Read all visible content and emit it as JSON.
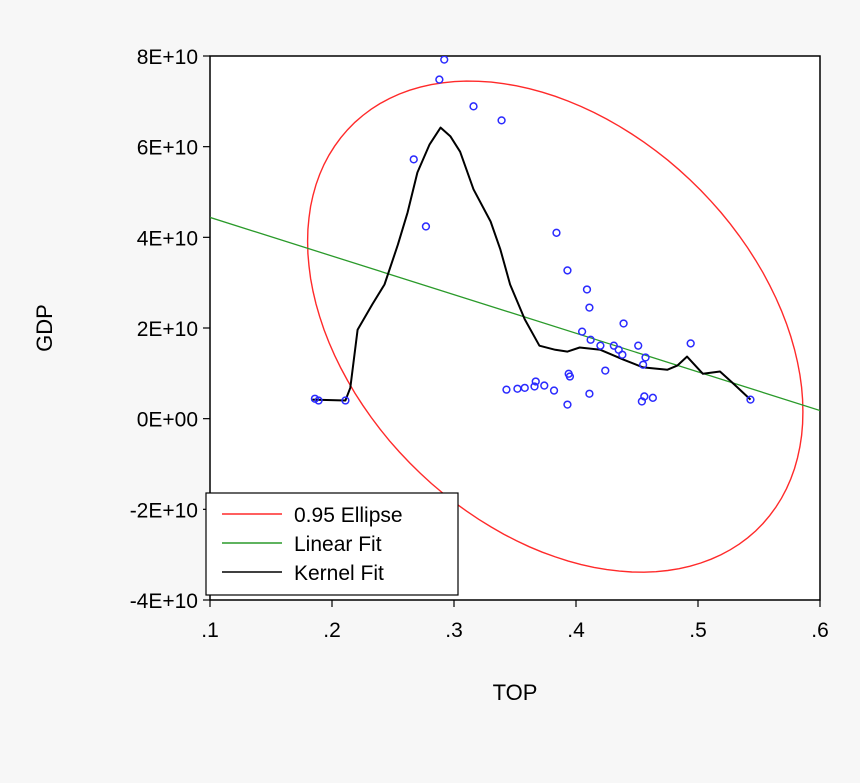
{
  "chart_data": {
    "type": "scatter",
    "title": "",
    "xlabel": "TOP",
    "ylabel": "GDP",
    "xlim": [
      0.1,
      0.6
    ],
    "ylim": [
      -40000000000.0,
      80000000000.0
    ],
    "x_ticks": [
      0.1,
      0.2,
      0.3,
      0.4,
      0.5,
      0.6
    ],
    "x_tick_labels": [
      ".1",
      ".2",
      ".3",
      ".4",
      ".5",
      ".6"
    ],
    "y_ticks": [
      -40000000000.0,
      -20000000000.0,
      0,
      20000000000.0,
      40000000000.0,
      60000000000.0,
      80000000000.0
    ],
    "y_tick_labels": [
      "-4E+10",
      "-2E+10",
      "0E+00",
      "2E+10",
      "4E+10",
      "6E+10",
      "8E+10"
    ],
    "grid": false,
    "legend_position": "bottom-left",
    "colors": {
      "points": "#2a2aff",
      "ellipse": "#ff2a2a",
      "linear": "#2a9a2a",
      "kernel": "#000000"
    },
    "points": {
      "name": "GDP vs TOP",
      "x": [
        0.292,
        0.288,
        0.316,
        0.339,
        0.267,
        0.277,
        0.384,
        0.393,
        0.409,
        0.411,
        0.439,
        0.405,
        0.412,
        0.42,
        0.431,
        0.435,
        0.438,
        0.451,
        0.457,
        0.455,
        0.494,
        0.424,
        0.394,
        0.395,
        0.343,
        0.352,
        0.358,
        0.367,
        0.366,
        0.374,
        0.382,
        0.411,
        0.393,
        0.456,
        0.454,
        0.463,
        0.543,
        0.186,
        0.189,
        0.211
      ],
      "y": [
        79200000000.0,
        74800000000.0,
        68900000000.0,
        65800000000.0,
        57200000000.0,
        42400000000.0,
        41000000000.0,
        32700000000.0,
        28500000000.0,
        24500000000.0,
        21000000000.0,
        19200000000.0,
        17400000000.0,
        16100000000.0,
        16100000000.0,
        15200000000.0,
        14100000000.0,
        16100000000.0,
        13500000000.0,
        11900000000.0,
        16600000000.0,
        10600000000.0,
        9900000000.0,
        9300000000.0,
        6400000000.0,
        6600000000.0,
        6800000000.0,
        8200000000.0,
        7100000000.0,
        7300000000.0,
        6200000000.0,
        5500000000.0,
        3100000000.0,
        4900000000.0,
        3800000000.0,
        4600000000.0,
        4200000000.0,
        4400000000.0,
        4000000000.0,
        4000000000.0
      ]
    },
    "series": [
      {
        "name": "0.95 Ellipse",
        "type": "ellipse",
        "center": [
          0.383,
          20300000000.0
        ],
        "u": [
          0.203,
          -18800000000.0
        ],
        "v": [
          0,
          50800000000.0
        ]
      },
      {
        "name": "Linear Fit",
        "type": "line",
        "x": [
          0.1,
          0.6
        ],
        "y": [
          44400000000.0,
          1800000000.0
        ]
      },
      {
        "name": "Kernel Fit",
        "type": "line",
        "x": [
          0.184,
          0.211,
          0.215,
          0.221,
          0.233,
          0.243,
          0.254,
          0.262,
          0.27,
          0.28,
          0.289,
          0.297,
          0.305,
          0.316,
          0.33,
          0.338,
          0.346,
          0.358,
          0.37,
          0.383,
          0.393,
          0.403,
          0.42,
          0.439,
          0.455,
          0.475,
          0.483,
          0.491,
          0.504,
          0.518,
          0.53,
          0.543
        ],
        "y": [
          4200000000.0,
          4000000000.0,
          6800000000.0,
          19600000000.0,
          25200000000.0,
          29600000000.0,
          38400000000.0,
          45500000000.0,
          54300000000.0,
          60500000000.0,
          64200000000.0,
          62300000000.0,
          58900000000.0,
          50600000000.0,
          43500000000.0,
          37300000000.0,
          29600000000.0,
          21900000000.0,
          16100000000.0,
          15200000000.0,
          14800000000.0,
          15700000000.0,
          15200000000.0,
          13000000000.0,
          11300000000.0,
          10800000000.0,
          11700000000.0,
          13700000000.0,
          9900000000.0,
          10400000000.0,
          7500000000.0,
          4200000000.0
        ]
      }
    ],
    "legend": [
      "0.95 Ellipse",
      "Linear Fit",
      "Kernel Fit"
    ]
  }
}
